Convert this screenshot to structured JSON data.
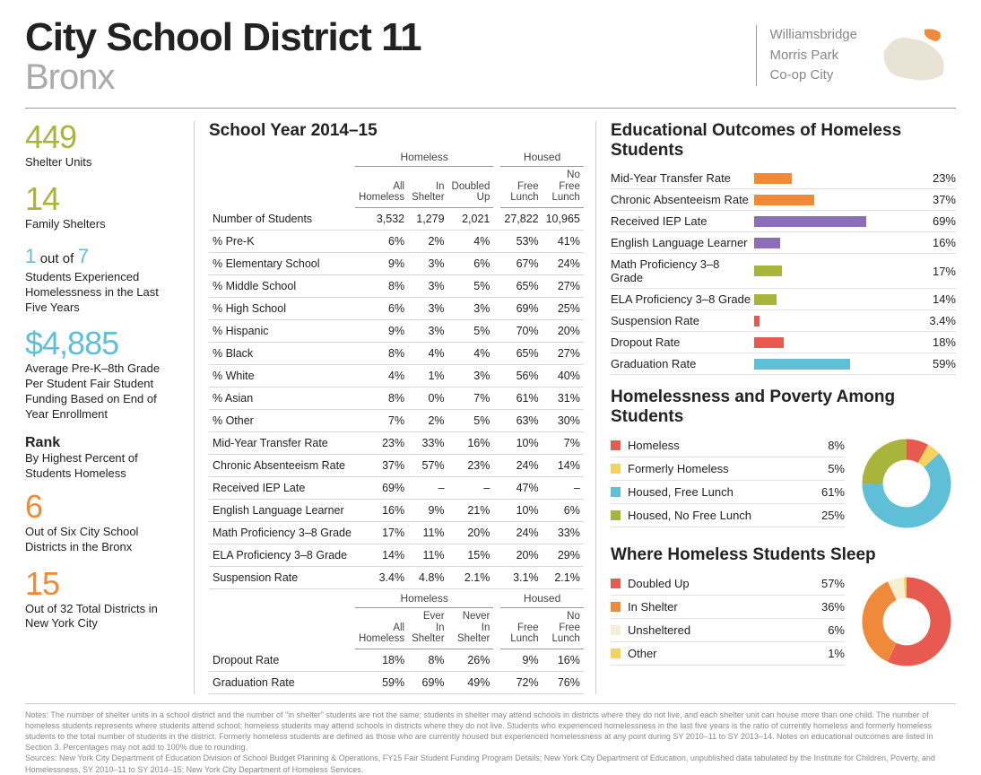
{
  "header": {
    "title": "City School District 11",
    "subtitle": "Bronx",
    "neighborhoods": [
      "Williamsbridge",
      "Morris Park",
      "Co-op City"
    ]
  },
  "colors": {
    "olive": "#a8b43a",
    "cyan": "#5fbfd6",
    "orange": "#ef8a3a",
    "purple": "#8a6fb8",
    "red": "#e85a4f",
    "yellow": "#f3d35e",
    "pale": "#f5eed2",
    "map_bg": "#e8e3d5",
    "map_hl": "#ef8a3a"
  },
  "sidebar": {
    "shelter_units": {
      "value": "449",
      "label": "Shelter Units",
      "color": "#a8b43a"
    },
    "family_shelters": {
      "value": "14",
      "label": "Family Shelters",
      "color": "#a8b43a"
    },
    "ratio": {
      "num": "1",
      "mid": "out of",
      "den": "7",
      "label": "Students Experienced Homelessness in the Last Five Years",
      "color": "#5fbfd6"
    },
    "funding": {
      "value": "$4,885",
      "label": "Average Pre-K–8th Grade Per Student Fair Student Funding Based on End of Year Enrollment",
      "color": "#5fbfd6"
    },
    "rank_title": "Rank",
    "rank_sub": "By Highest Percent of Students Homeless",
    "rank1": {
      "value": "6",
      "label": "Out of Six City School Districts in the Bronx",
      "color": "#ef8a3a"
    },
    "rank2": {
      "value": "15",
      "label": "Out of 32 Total Districts in New York City",
      "color": "#ef8a3a"
    }
  },
  "table": {
    "title": "School Year 2014–15",
    "groups": [
      "Homeless",
      "Housed"
    ],
    "cols1": [
      "All Homeless",
      "In Shelter",
      "Doubled Up",
      "Free Lunch",
      "No Free Lunch"
    ],
    "rows1": [
      {
        "label": "Number of Students",
        "v": [
          "3,532",
          "1,279",
          "2,021",
          "27,822",
          "10,965"
        ]
      },
      {
        "label": "% Pre-K",
        "v": [
          "6%",
          "2%",
          "4%",
          "53%",
          "41%"
        ]
      },
      {
        "label": "% Elementary School",
        "v": [
          "9%",
          "3%",
          "6%",
          "67%",
          "24%"
        ]
      },
      {
        "label": "% Middle School",
        "v": [
          "8%",
          "3%",
          "5%",
          "65%",
          "27%"
        ]
      },
      {
        "label": "% High School",
        "v": [
          "6%",
          "3%",
          "3%",
          "69%",
          "25%"
        ]
      },
      {
        "label": "% Hispanic",
        "v": [
          "9%",
          "3%",
          "5%",
          "70%",
          "20%"
        ]
      },
      {
        "label": "% Black",
        "v": [
          "8%",
          "4%",
          "4%",
          "65%",
          "27%"
        ]
      },
      {
        "label": "% White",
        "v": [
          "4%",
          "1%",
          "3%",
          "56%",
          "40%"
        ]
      },
      {
        "label": "% Asian",
        "v": [
          "8%",
          "0%",
          "7%",
          "61%",
          "31%"
        ]
      },
      {
        "label": "% Other",
        "v": [
          "7%",
          "2%",
          "5%",
          "63%",
          "30%"
        ]
      },
      {
        "label": "Mid-Year Transfer Rate",
        "v": [
          "23%",
          "33%",
          "16%",
          "10%",
          "7%"
        ]
      },
      {
        "label": "Chronic Absenteeism Rate",
        "v": [
          "37%",
          "57%",
          "23%",
          "24%",
          "14%"
        ]
      },
      {
        "label": "Received IEP Late",
        "v": [
          "69%",
          "–",
          "–",
          "47%",
          "–"
        ]
      },
      {
        "label": "English Language Learner",
        "v": [
          "16%",
          "9%",
          "21%",
          "10%",
          "6%"
        ]
      },
      {
        "label": "Math Proficiency 3–8 Grade",
        "v": [
          "17%",
          "11%",
          "20%",
          "24%",
          "33%"
        ]
      },
      {
        "label": "ELA Proficiency 3–8 Grade",
        "v": [
          "14%",
          "11%",
          "15%",
          "20%",
          "29%"
        ]
      },
      {
        "label": "Suspension Rate",
        "v": [
          "3.4%",
          "4.8%",
          "2.1%",
          "3.1%",
          "2.1%"
        ]
      }
    ],
    "cols2": [
      "All Homeless",
      "Ever In Shelter",
      "Never In Shelter",
      "Free Lunch",
      "No Free Lunch"
    ],
    "rows2": [
      {
        "label": "Dropout Rate",
        "v": [
          "18%",
          "8%",
          "26%",
          "9%",
          "16%"
        ]
      },
      {
        "label": "Graduation Rate",
        "v": [
          "59%",
          "69%",
          "49%",
          "72%",
          "76%"
        ]
      }
    ]
  },
  "outcomes": {
    "title": "Educational Outcomes of Homeless Students",
    "max": 100,
    "rows": [
      {
        "label": "Mid-Year Transfer Rate",
        "value": 23,
        "display": "23%",
        "color": "#ef8a3a"
      },
      {
        "label": "Chronic Absenteeism Rate",
        "value": 37,
        "display": "37%",
        "color": "#ef8a3a"
      },
      {
        "label": "Received IEP Late",
        "value": 69,
        "display": "69%",
        "color": "#8a6fb8"
      },
      {
        "label": "English Language Learner",
        "value": 16,
        "display": "16%",
        "color": "#8a6fb8"
      },
      {
        "label": "Math Proficiency 3–8 Grade",
        "value": 17,
        "display": "17%",
        "color": "#a8b43a"
      },
      {
        "label": "ELA Proficiency 3–8 Grade",
        "value": 14,
        "display": "14%",
        "color": "#a8b43a"
      },
      {
        "label": "Suspension Rate",
        "value": 3.4,
        "display": "3.4%",
        "color": "#e85a4f"
      },
      {
        "label": "Dropout Rate",
        "value": 18,
        "display": "18%",
        "color": "#e85a4f"
      },
      {
        "label": "Graduation Rate",
        "value": 59,
        "display": "59%",
        "color": "#5fbfd6"
      }
    ]
  },
  "poverty": {
    "title": "Homelessness and Poverty Among Students",
    "items": [
      {
        "label": "Homeless",
        "value": 8,
        "display": "8%",
        "color": "#e85a4f"
      },
      {
        "label": "Formerly Homeless",
        "value": 5,
        "display": "5%",
        "color": "#f3d35e"
      },
      {
        "label": "Housed, Free Lunch",
        "value": 61,
        "display": "61%",
        "color": "#5fbfd6"
      },
      {
        "label": "Housed, No Free Lunch",
        "value": 25,
        "display": "25%",
        "color": "#a8b43a"
      }
    ]
  },
  "sleep": {
    "title": "Where Homeless Students Sleep",
    "items": [
      {
        "label": "Doubled Up",
        "value": 57,
        "display": "57%",
        "color": "#e85a4f"
      },
      {
        "label": "In Shelter",
        "value": 36,
        "display": "36%",
        "color": "#ef8a3a"
      },
      {
        "label": "Unsheltered",
        "value": 6,
        "display": "6%",
        "color": "#f5eed2"
      },
      {
        "label": "Other",
        "value": 1,
        "display": "1%",
        "color": "#f3d35e"
      }
    ]
  },
  "footer": {
    "notes": "Notes: The number of shelter units in a school district and the number of \"in shelter\" students are not the same; students in shelter may attend schools in districts where they do not live, and each shelter unit can house more than one child. The number of homeless students represents where students attend school; homeless students may attend schools in districts where they do not live. Students who experienced homelessness in the last five years is the ratio of currently homeless and formerly homeless students to the total number of students in the district. Formerly homeless students are defined as those who are currently housed but experienced homelessness at any point during SY 2010–11 to SY 2013–14. Notes on educational outcomes are listed in Section 3. Percentages may not add to 100% due to rounding.",
    "sources": "Sources: New York City Department of Education Division of School Budget Planning & Operations, FY15 Fair Student Funding Program Details; New York City Department of Education, unpublished data tabulated by the Institute for Children, Poverty, and Homelessness, SY 2010–11 to SY 2014–15; New York City Department of Homeless Services."
  }
}
